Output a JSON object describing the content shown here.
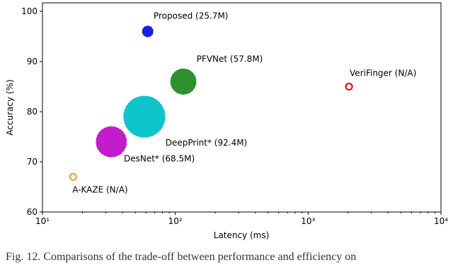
{
  "chart_data": {
    "type": "scatter",
    "xlabel": "Latency (ms)",
    "ylabel": "Accuracy (%)",
    "x_scale": "log",
    "xlim": [
      10,
      10000
    ],
    "xticks": [
      {
        "value": 10,
        "label": "10¹"
      },
      {
        "value": 100,
        "label": "10²"
      },
      {
        "value": 1000,
        "label": "10³"
      },
      {
        "value": 10000,
        "label": "10⁴"
      }
    ],
    "ylim": [
      60,
      101.7
    ],
    "yticks": [
      60,
      70,
      80,
      90,
      100
    ],
    "series": [
      {
        "name": "Proposed (25.7M)",
        "color": "#0a14e6",
        "x": [
          62
        ],
        "values": [
          96
        ],
        "sizes": [
          25.7
        ]
      },
      {
        "name": "PFVNet (57.8M)",
        "color": "#228b22",
        "x": [
          115
        ],
        "values": [
          86
        ],
        "sizes": [
          57.8
        ]
      },
      {
        "name": "DeepPrint* (92.4M)",
        "color": "#00c2c8",
        "x": [
          58.5
        ],
        "values": [
          79
        ],
        "sizes": [
          92.4
        ]
      },
      {
        "name": "DesNet* (68.5M)",
        "color": "#c010c8",
        "x": [
          33
        ],
        "values": [
          74
        ],
        "sizes": [
          68.5
        ]
      },
      {
        "name": "A-KAZE (N/A)",
        "color": "#f0a030",
        "x": [
          17
        ],
        "values": [
          67
        ],
        "sizes": [
          null
        ]
      },
      {
        "name": "VeriFinger (N/A)",
        "color": "#e81010",
        "x": [
          2030
        ],
        "values": [
          85
        ],
        "sizes": [
          null
        ]
      }
    ],
    "caption": "Fig. 12. Comparisons of the trade-off between performance and efficiency on"
  }
}
